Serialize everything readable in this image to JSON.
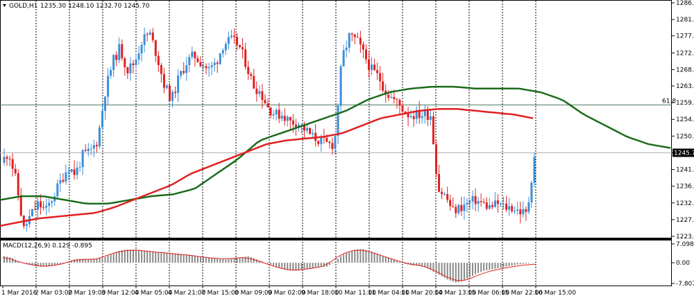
{
  "chart_data": [
    {
      "type": "candlestick",
      "symbol_label": "GOLD,H1",
      "ohlc_label": "1235.30 1248.10 1232.70 1245.70",
      "price_axis": {
        "ticks": [
          "1286.10",
          "1281.60",
          "1277.20",
          "1272.60",
          "1268.10",
          "1263.70",
          "1259.20",
          "1254.70",
          "1250.20",
          "1245.70",
          "1241.20",
          "1236.70",
          "1232.20",
          "1227.70",
          "1223.20"
        ],
        "range": [
          1223.2,
          1286.1
        ]
      },
      "time_axis": {
        "ticks": [
          "1 Mar 2016",
          "2 Mar 03:00",
          "2 Mar 19:00",
          "3 Mar 12:00",
          "4 Mar 05:00",
          "4 Mar 21:00",
          "7 Mar 15:00",
          "8 Mar 09:00",
          "9 Mar 02:00",
          "9 Mar 18:00",
          "10 Mar 11:00",
          "11 Mar 04:00",
          "11 Mar 20:00",
          "14 Mar 13:00",
          "15 Mar 06:00",
          "15 Mar 22:00",
          "16 Mar 15:00"
        ]
      },
      "current_price": "1245.70",
      "fib_level": {
        "label": "61.8",
        "price": 1258.6
      },
      "colors": {
        "bull": "#3b8ed8",
        "bear": "#e02020",
        "ma_fast": "#1a6b1a",
        "ma_slow": "#e02020",
        "fib_line": "#4a7a5a"
      },
      "price_path": [
        1243,
        1246,
        1238,
        1225,
        1229,
        1232,
        1230,
        1234,
        1238,
        1242,
        1240,
        1245,
        1246,
        1249,
        1262,
        1270,
        1274,
        1268,
        1270,
        1276,
        1278,
        1272,
        1264,
        1260,
        1266,
        1270,
        1272,
        1270,
        1268,
        1270,
        1275,
        1276,
        1275,
        1270,
        1264,
        1262,
        1258,
        1256,
        1256,
        1254,
        1254,
        1252,
        1250,
        1249,
        1248,
        1248,
        1271,
        1277,
        1276,
        1272,
        1268,
        1266,
        1262,
        1260,
        1258,
        1256,
        1256,
        1256,
        1256,
        1236,
        1234,
        1230,
        1231,
        1232,
        1233,
        1232,
        1231,
        1232,
        1231,
        1231,
        1230,
        1229,
        1245
      ],
      "ma_fast_path": [
        1233,
        1234,
        1234,
        1233,
        1232,
        1232,
        1233,
        1234,
        1234.5,
        1236,
        1240,
        1244,
        1249,
        1251,
        1253,
        1255,
        1257,
        1260,
        1262,
        1263,
        1263.5,
        1263.5,
        1263,
        1263,
        1263,
        1262,
        1260,
        1256,
        1253,
        1250,
        1248,
        1247
      ],
      "ma_slow_path": [
        1226,
        1227,
        1228,
        1228.5,
        1229,
        1229.5,
        1231,
        1233,
        1235,
        1237,
        1240,
        1242,
        1244,
        1246,
        1248,
        1249,
        1249.5,
        1250,
        1251,
        1253,
        1255,
        1256,
        1257,
        1257.5,
        1257.5,
        1257,
        1256.5,
        1256,
        1255
      ]
    },
    {
      "type": "histogram",
      "title": "MACD(12,26,9) 0.129 -0.895",
      "axis": {
        "ticks": [
          "7.098",
          "0.00",
          "-7.807"
        ],
        "range": [
          -7.807,
          7.098
        ]
      },
      "colors": {
        "bars": "#888888",
        "signal": "#e02020"
      },
      "macd_path": [
        2.5,
        2.0,
        0.5,
        -0.5,
        -1.0,
        -1.5,
        -1.5,
        -1.0,
        -0.5,
        0.5,
        1.5,
        1.5,
        1.5,
        1.5,
        2.0,
        3.5,
        4.5,
        5.0,
        5.0,
        4.8,
        4.5,
        4.2,
        4.0,
        3.8,
        3.5,
        3.2,
        3.0,
        2.5,
        2.0,
        1.8,
        1.5,
        1.2,
        1.5,
        2.0,
        2.5,
        1.5,
        0.5,
        -0.5,
        -1.5,
        -2.5,
        -3.0,
        -3.0,
        -2.5,
        -2.0,
        -1.5,
        -1.5,
        0.0,
        2.5,
        4.0,
        5.0,
        5.2,
        4.5,
        3.5,
        2.5,
        1.5,
        0.5,
        -0.5,
        -1.0,
        -1.2,
        -2.0,
        -3.5,
        -5.0,
        -6.5,
        -7.5,
        -7.0,
        -5.5,
        -4.0,
        -3.0,
        -2.5,
        -2.0,
        -1.5,
        -1.0,
        -0.5,
        -0.3,
        0.1
      ],
      "signal_path": [
        2.0,
        1.5,
        0.5,
        -0.2,
        -0.8,
        -1.2,
        -1.3,
        -1.0,
        -0.5,
        0.3,
        1.0,
        1.2,
        1.3,
        1.5,
        2.5,
        3.5,
        4.2,
        4.6,
        4.8,
        4.6,
        4.3,
        4.0,
        3.8,
        3.5,
        3.2,
        3.0,
        2.7,
        2.3,
        2.0,
        1.7,
        1.5,
        1.5,
        1.8,
        2.0,
        1.5,
        0.7,
        -0.3,
        -1.2,
        -2.0,
        -2.6,
        -2.8,
        -2.6,
        -2.2,
        -1.8,
        -1.2,
        0.5,
        2.5,
        3.8,
        4.6,
        4.8,
        4.3,
        3.5,
        2.6,
        1.7,
        0.8,
        0.0,
        -0.6,
        -1.0,
        -1.6,
        -2.8,
        -4.2,
        -5.6,
        -6.6,
        -6.8,
        -6.0,
        -4.8,
        -3.8,
        -3.0,
        -2.4,
        -1.9,
        -1.4,
        -1.0,
        -0.7,
        -0.5
      ]
    }
  ]
}
